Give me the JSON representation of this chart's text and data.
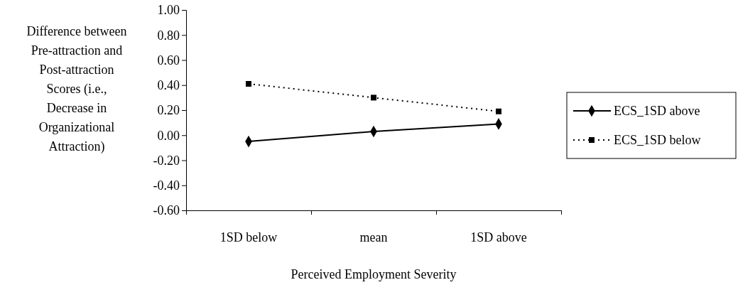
{
  "chart_data": {
    "type": "line",
    "xlabel": "Perceived Employment Severity",
    "ylabel": "Difference between Pre-attraction and Post-attraction Scores (i.e., Decrease in Organizational Attraction)",
    "categories": [
      "1SD below",
      "mean",
      "1SD above"
    ],
    "series": [
      {
        "name": "ECS_1SD above",
        "color": "#000000",
        "values": [
          -0.05,
          0.03,
          0.09
        ],
        "marker": "diamond",
        "line_style": "solid"
      },
      {
        "name": "ECS_1SD below",
        "color": "#000000",
        "values": [
          0.41,
          0.3,
          0.19
        ],
        "marker": "square",
        "line_style": "dotted"
      }
    ],
    "ylim": [
      -0.6,
      1.0
    ],
    "yticks": [
      {
        "value": -0.6,
        "label": "-0.60"
      },
      {
        "value": -0.4,
        "label": "-0.40"
      },
      {
        "value": -0.2,
        "label": "-0.20"
      },
      {
        "value": 0,
        "label": "0.00"
      },
      {
        "value": 0.2,
        "label": "0.20"
      },
      {
        "value": 0.4,
        "label": "0.40"
      },
      {
        "value": 0.6,
        "label": "0.60"
      },
      {
        "value": 0.8,
        "label": "0.80"
      },
      {
        "value": 1.0,
        "label": "1.00"
      }
    ],
    "legend": "right"
  }
}
